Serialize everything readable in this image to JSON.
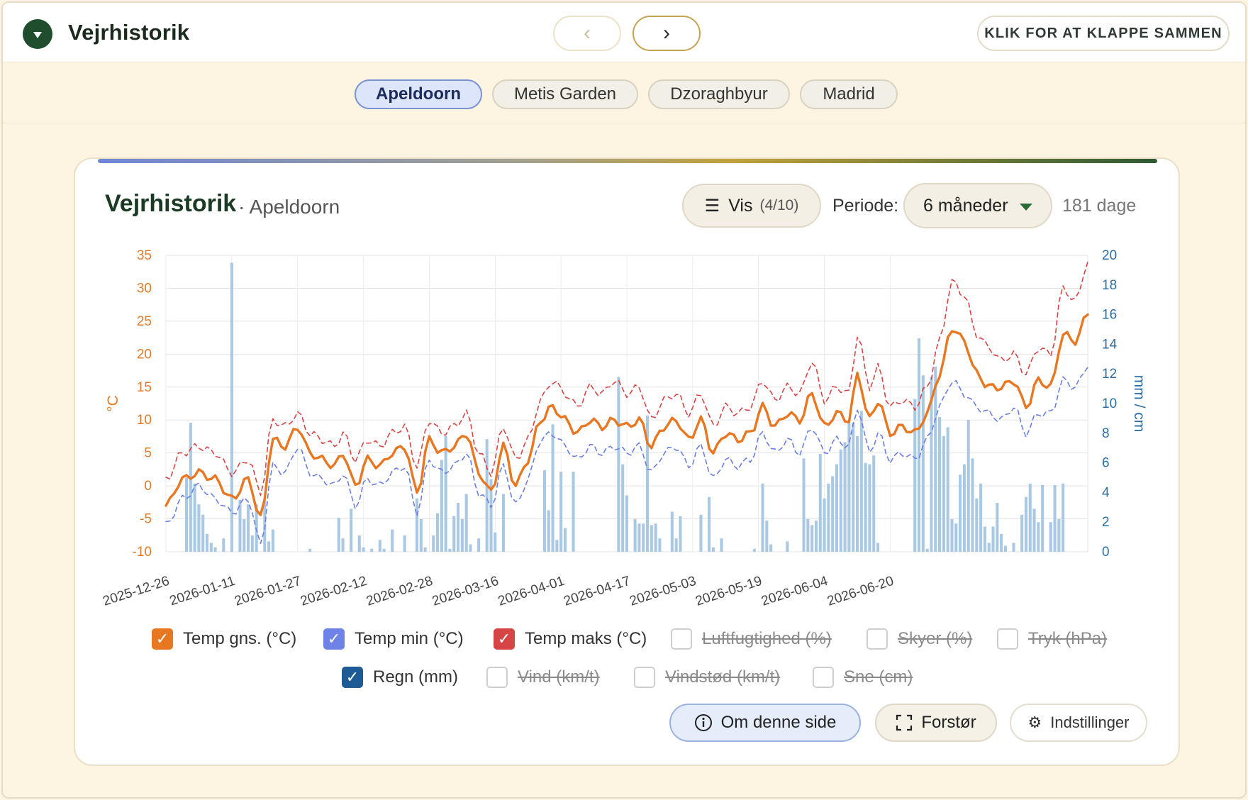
{
  "app": {
    "title": "Vejrhistorik",
    "collapse_label": "KLIK FOR AT KLAPPE SAMMEN",
    "prev_label": "‹",
    "next_label": "›"
  },
  "locations": [
    {
      "label": "Apeldoorn",
      "active": true
    },
    {
      "label": "Metis Garden",
      "active": false
    },
    {
      "label": "Dzoraghbyur",
      "active": false
    },
    {
      "label": "Madrid",
      "active": false
    }
  ],
  "card": {
    "title": "Vejrhistorik",
    "subtitle": "· Apeldoorn",
    "vis_label": "Vis",
    "vis_count": "(4/10)",
    "period_label": "Periode:",
    "period_value": "6 måneder",
    "days_label": "181 dage"
  },
  "chart_data": {
    "type": "line",
    "x_start": "2025-12-26",
    "x_end": "2026-06-24",
    "x_tick_labels": [
      "2025-12-26",
      "2026-01-11",
      "2026-01-27",
      "2026-02-12",
      "2026-02-28",
      "2026-03-16",
      "2026-04-01",
      "2026-04-17",
      "2026-05-03",
      "2026-05-19",
      "2026-06-04",
      "2026-06-20"
    ],
    "y_left": {
      "label": "°C",
      "min": -10,
      "max": 35,
      "ticks": [
        35,
        30,
        25,
        20,
        15,
        10,
        5,
        0,
        -5,
        -10
      ],
      "color": "#e07b2a"
    },
    "y_right": {
      "label": "mm / cm",
      "min": 0,
      "max": 20,
      "ticks": [
        20,
        18,
        16,
        14,
        12,
        10,
        8,
        6,
        4,
        2,
        0
      ],
      "color": "#2b6fa6"
    },
    "grid": true,
    "legend_position": "bottom",
    "series": [
      {
        "name": "Temp gns. (°C)",
        "axis": "left",
        "style": "solid",
        "color": "#e87722",
        "anchors": [
          [
            0,
            -3
          ],
          [
            4,
            1
          ],
          [
            8,
            2
          ],
          [
            12,
            1
          ],
          [
            16,
            -2
          ],
          [
            20,
            1
          ],
          [
            23,
            -5
          ],
          [
            26,
            7
          ],
          [
            29,
            6
          ],
          [
            32,
            9
          ],
          [
            35,
            5
          ],
          [
            38,
            4
          ],
          [
            41,
            3
          ],
          [
            43,
            5
          ],
          [
            46,
            0
          ],
          [
            49,
            4
          ],
          [
            52,
            3
          ],
          [
            55,
            5
          ],
          [
            58,
            6
          ],
          [
            61,
            -1
          ],
          [
            64,
            7
          ],
          [
            67,
            5
          ],
          [
            70,
            6
          ],
          [
            73,
            8
          ],
          [
            76,
            2
          ],
          [
            79,
            -1
          ],
          [
            82,
            6
          ],
          [
            85,
            0
          ],
          [
            88,
            4
          ],
          [
            91,
            10
          ],
          [
            94,
            12
          ],
          [
            97,
            10
          ],
          [
            100,
            8
          ],
          [
            103,
            10
          ],
          [
            106,
            9
          ],
          [
            109,
            10
          ],
          [
            112,
            9
          ],
          [
            115,
            10
          ],
          [
            118,
            6
          ],
          [
            121,
            9
          ],
          [
            124,
            10
          ],
          [
            127,
            7
          ],
          [
            130,
            10
          ],
          [
            133,
            5
          ],
          [
            136,
            8
          ],
          [
            139,
            7
          ],
          [
            142,
            8
          ],
          [
            145,
            12
          ],
          [
            148,
            9
          ],
          [
            151,
            11
          ],
          [
            154,
            10
          ],
          [
            157,
            14
          ],
          [
            160,
            9
          ],
          [
            163,
            11
          ],
          [
            166,
            10
          ],
          [
            168,
            17
          ],
          [
            171,
            10
          ],
          [
            173,
            13
          ],
          [
            176,
            8
          ],
          [
            179,
            9
          ],
          [
            182,
            8
          ],
          [
            185,
            11
          ],
          [
            188,
            17
          ],
          [
            191,
            24
          ],
          [
            194,
            22
          ],
          [
            197,
            17
          ],
          [
            200,
            15
          ],
          [
            203,
            15
          ],
          [
            206,
            16
          ],
          [
            209,
            12
          ],
          [
            212,
            16
          ],
          [
            215,
            15
          ],
          [
            218,
            23
          ],
          [
            221,
            22
          ],
          [
            224,
            26
          ]
        ]
      },
      {
        "name": "Temp min (°C)",
        "axis": "left",
        "style": "dashed",
        "color": "#6b7fe0",
        "anchors": [
          [
            0,
            -6
          ],
          [
            4,
            -2
          ],
          [
            8,
            0
          ],
          [
            12,
            -2
          ],
          [
            16,
            -4
          ],
          [
            20,
            -2
          ],
          [
            23,
            -9
          ],
          [
            26,
            3
          ],
          [
            29,
            2
          ],
          [
            32,
            6
          ],
          [
            35,
            2
          ],
          [
            38,
            1
          ],
          [
            41,
            0
          ],
          [
            43,
            2
          ],
          [
            46,
            -3
          ],
          [
            49,
            1
          ],
          [
            52,
            0
          ],
          [
            55,
            2
          ],
          [
            58,
            3
          ],
          [
            61,
            -4
          ],
          [
            64,
            4
          ],
          [
            67,
            2
          ],
          [
            70,
            3
          ],
          [
            73,
            5
          ],
          [
            76,
            -1
          ],
          [
            79,
            -3
          ],
          [
            82,
            3
          ],
          [
            85,
            -3
          ],
          [
            88,
            1
          ],
          [
            91,
            7
          ],
          [
            94,
            8
          ],
          [
            97,
            6
          ],
          [
            100,
            4
          ],
          [
            103,
            6
          ],
          [
            106,
            5
          ],
          [
            109,
            6
          ],
          [
            112,
            5
          ],
          [
            115,
            6
          ],
          [
            118,
            2
          ],
          [
            121,
            5
          ],
          [
            124,
            6
          ],
          [
            127,
            3
          ],
          [
            130,
            6
          ],
          [
            133,
            1
          ],
          [
            136,
            4
          ],
          [
            139,
            3
          ],
          [
            142,
            4
          ],
          [
            145,
            8
          ],
          [
            148,
            5
          ],
          [
            151,
            7
          ],
          [
            154,
            5
          ],
          [
            157,
            9
          ],
          [
            160,
            5
          ],
          [
            163,
            7
          ],
          [
            166,
            6
          ],
          [
            168,
            12
          ],
          [
            171,
            5
          ],
          [
            173,
            8
          ],
          [
            176,
            4
          ],
          [
            179,
            5
          ],
          [
            182,
            4
          ],
          [
            185,
            7
          ],
          [
            188,
            12
          ],
          [
            191,
            16
          ],
          [
            194,
            14
          ],
          [
            197,
            12
          ],
          [
            200,
            11
          ],
          [
            203,
            10
          ],
          [
            206,
            12
          ],
          [
            209,
            8
          ],
          [
            212,
            11
          ],
          [
            215,
            11
          ],
          [
            218,
            16
          ],
          [
            221,
            15
          ],
          [
            224,
            18
          ]
        ]
      },
      {
        "name": "Temp maks (°C)",
        "axis": "left",
        "style": "dashed",
        "color": "#d64545",
        "anchors": [
          [
            0,
            1
          ],
          [
            4,
            5
          ],
          [
            8,
            6
          ],
          [
            12,
            5
          ],
          [
            16,
            2
          ],
          [
            20,
            4
          ],
          [
            23,
            -1
          ],
          [
            26,
            10
          ],
          [
            29,
            9
          ],
          [
            32,
            11
          ],
          [
            35,
            8
          ],
          [
            38,
            7
          ],
          [
            41,
            6
          ],
          [
            43,
            8
          ],
          [
            46,
            4
          ],
          [
            49,
            7
          ],
          [
            52,
            6
          ],
          [
            55,
            8
          ],
          [
            58,
            9
          ],
          [
            61,
            3
          ],
          [
            64,
            10
          ],
          [
            67,
            8
          ],
          [
            70,
            9
          ],
          [
            73,
            11
          ],
          [
            76,
            5
          ],
          [
            79,
            2
          ],
          [
            82,
            9
          ],
          [
            85,
            4
          ],
          [
            88,
            7
          ],
          [
            91,
            13
          ],
          [
            94,
            16
          ],
          [
            97,
            14
          ],
          [
            100,
            12
          ],
          [
            103,
            15
          ],
          [
            106,
            14
          ],
          [
            109,
            16
          ],
          [
            112,
            14
          ],
          [
            115,
            15
          ],
          [
            118,
            10
          ],
          [
            121,
            13
          ],
          [
            124,
            14
          ],
          [
            127,
            11
          ],
          [
            130,
            14
          ],
          [
            133,
            9
          ],
          [
            136,
            12
          ],
          [
            139,
            11
          ],
          [
            142,
            12
          ],
          [
            145,
            16
          ],
          [
            148,
            13
          ],
          [
            151,
            15
          ],
          [
            154,
            14
          ],
          [
            157,
            19
          ],
          [
            160,
            13
          ],
          [
            163,
            15
          ],
          [
            166,
            14
          ],
          [
            168,
            23
          ],
          [
            171,
            15
          ],
          [
            173,
            18
          ],
          [
            176,
            12
          ],
          [
            179,
            13
          ],
          [
            182,
            12
          ],
          [
            185,
            15
          ],
          [
            188,
            22
          ],
          [
            191,
            31
          ],
          [
            194,
            29
          ],
          [
            197,
            23
          ],
          [
            200,
            21
          ],
          [
            203,
            19
          ],
          [
            206,
            20
          ],
          [
            209,
            17
          ],
          [
            212,
            21
          ],
          [
            215,
            20
          ],
          [
            218,
            30
          ],
          [
            221,
            28
          ],
          [
            224,
            34
          ]
        ]
      },
      {
        "name": "Regn (mm)",
        "axis": "right",
        "type": "bar",
        "color": "#a9c8e4",
        "values_by_day": {
          "5": 5,
          "6": 8.7,
          "7": 4.6,
          "8": 3.2,
          "9": 2.5,
          "10": 1.2,
          "11": 0.6,
          "12": 0.3,
          "14": 0.9,
          "16": 19.5,
          "18": 3.5,
          "19": 2.2,
          "20": 3.2,
          "21": 1.1,
          "22": 3.2,
          "24": 3.5,
          "25": 0.7,
          "26": 1.5,
          "35": 0.2,
          "42": 2.3,
          "43": 0.9,
          "45": 2.9,
          "47": 1.1,
          "48": 0.3,
          "50": 0.2,
          "52": 0.8,
          "53": 0.2,
          "55": 1.5,
          "58": 1.1,
          "61": 3.6,
          "62": 2.2,
          "63": 0.3,
          "65": 1.1,
          "66": 2.6,
          "67": 6.2,
          "68": 7.8,
          "69": 0.2,
          "70": 2.4,
          "71": 3.3,
          "72": 2.2,
          "73": 3.9,
          "74": 0.5,
          "76": 0.9,
          "78": 7.6,
          "79": 4.9,
          "80": 1.3,
          "82": 3.9,
          "92": 5.5,
          "93": 2.8,
          "94": 8.6,
          "95": 0.8,
          "96": 5.4,
          "97": 1.6,
          "99": 5.4,
          "110": 11.8,
          "111": 5.9,
          "112": 3.8,
          "114": 2.2,
          "115": 1.9,
          "116": 1.9,
          "117": 9.2,
          "118": 1.8,
          "119": 1.9,
          "120": 0.9,
          "123": 2.7,
          "124": 0.9,
          "125": 2.4,
          "130": 2.5,
          "132": 3.7,
          "133": 0.3,
          "135": 0.9,
          "143": 0.2,
          "145": 4.6,
          "146": 2.1,
          "147": 0.5,
          "151": 0.7,
          "155": 6.3,
          "156": 2.2,
          "157": 1.8,
          "158": 2.1,
          "159": 6.6,
          "160": 3.6,
          "161": 4.6,
          "162": 5.1,
          "163": 5.9,
          "164": 6.9,
          "165": 7.4,
          "166": 8.7,
          "167": 8.7,
          "168": 7.8,
          "169": 9.5,
          "170": 6.0,
          "171": 5.9,
          "172": 6.5,
          "173": 0.6,
          "182": 10.3,
          "183": 14.4,
          "184": 11.9,
          "185": 0.2,
          "186": 11.8,
          "187": 12.5,
          "188": 9.1,
          "189": 7.8,
          "190": 8.4,
          "191": 2.2,
          "192": 1.9,
          "193": 5.2,
          "194": 5.9,
          "195": 8.9,
          "196": 6.3,
          "197": 3.6,
          "198": 4.6,
          "199": 1.7,
          "200": 0.6,
          "201": 1.7,
          "202": 3.3,
          "203": 1.2,
          "204": 0.4,
          "206": 0.6,
          "208": 2.5,
          "209": 3.7,
          "210": 4.6,
          "211": 2.9,
          "212": 2.0,
          "213": 4.5,
          "215": 2.0,
          "216": 4.5,
          "217": 2.2,
          "218": 4.6
        }
      }
    ]
  },
  "legend": [
    {
      "label": "Temp gns. (°C)",
      "checked": true,
      "color": "#e87722"
    },
    {
      "label": "Temp min (°C)",
      "checked": true,
      "color": "#6f82e6"
    },
    {
      "label": "Temp maks (°C)",
      "checked": true,
      "color": "#d64545"
    },
    {
      "label": "Luftfugtighed (%)",
      "checked": false
    },
    {
      "label": "Skyer (%)",
      "checked": false
    },
    {
      "label": "Tryk (hPa)",
      "checked": false
    },
    {
      "label": "Regn (mm)",
      "checked": true,
      "color": "#1e5a96"
    },
    {
      "label": "Vind (km/t)",
      "checked": false
    },
    {
      "label": "Vindstød (km/t)",
      "checked": false
    },
    {
      "label": "Sne (cm)",
      "checked": false
    }
  ],
  "actions": {
    "info_label": "Om denne side",
    "expand_label": "Forstør",
    "settings_label": "Indstillinger"
  },
  "icons": {
    "toggle": "caret-down-icon",
    "menu": "menu-icon",
    "info": "info-icon",
    "expand": "expand-icon",
    "settings": "gear-icon",
    "check": "checkmark-icon"
  }
}
